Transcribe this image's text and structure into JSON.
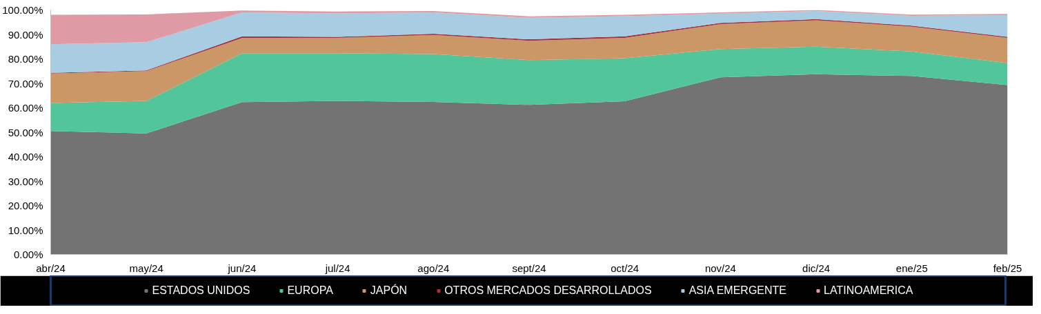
{
  "chart_data": {
    "type": "area",
    "stacked": true,
    "categories": [
      "abr/24",
      "may/24",
      "jun/24",
      "jul/24",
      "ago/24",
      "sept/24",
      "oct/24",
      "nov/24",
      "dic/24",
      "ene/25",
      "feb/25"
    ],
    "ylim": [
      0,
      100
    ],
    "yticks": [
      {
        "value": 0,
        "label": "0.00%"
      },
      {
        "value": 10,
        "label": "10.00%"
      },
      {
        "value": 20,
        "label": "20.00%"
      },
      {
        "value": 30,
        "label": "30.00%"
      },
      {
        "value": 40,
        "label": "40.00%"
      },
      {
        "value": 50,
        "label": "50.00%"
      },
      {
        "value": 60,
        "label": "60.00%"
      },
      {
        "value": 70,
        "label": "70.00%"
      },
      {
        "value": 80,
        "label": "80.00%"
      },
      {
        "value": 90,
        "label": "90.00%"
      },
      {
        "value": 100,
        "label": "100.00%"
      }
    ],
    "grid": "y",
    "legend": "bottom",
    "series": [
      {
        "name": "ESTADOS UNIDOS",
        "color": "#737373",
        "values": [
          50.5,
          49.5,
          62.3,
          62.8,
          62.4,
          61.2,
          62.7,
          72.5,
          73.7,
          73,
          69.3
        ]
      },
      {
        "name": "EUROPA",
        "color": "#52c69a",
        "values": [
          11.5,
          13.3,
          20,
          19.5,
          19.6,
          18.3,
          17.6,
          11.5,
          11.3,
          10,
          9
        ]
      },
      {
        "name": "JAPÓN",
        "color": "#cc9766",
        "values": [
          12,
          12.2,
          6.2,
          6.3,
          7.8,
          7.9,
          8.3,
          10.2,
          10.8,
          10.2,
          10.3
        ]
      },
      {
        "name": "OTROS MERCADOS DESARROLLADOS",
        "color": "#a33340",
        "values": [
          0.3,
          0.3,
          0.7,
          0.4,
          0.5,
          0.6,
          0.6,
          0.5,
          0.5,
          0.4,
          0.4
        ]
      },
      {
        "name": "ASIA EMERGENTE",
        "color": "#a8cce2",
        "values": [
          11.7,
          11.5,
          9.8,
          9.6,
          8.7,
          8.8,
          8.3,
          3.8,
          3.3,
          4,
          8.9
        ]
      },
      {
        "name": "LATINOAMERICA",
        "color": "#df9ba5",
        "values": [
          12,
          11.4,
          0.8,
          0.8,
          0.6,
          0.6,
          0.5,
          0.5,
          0.4,
          0.5,
          0.5
        ]
      }
    ]
  }
}
